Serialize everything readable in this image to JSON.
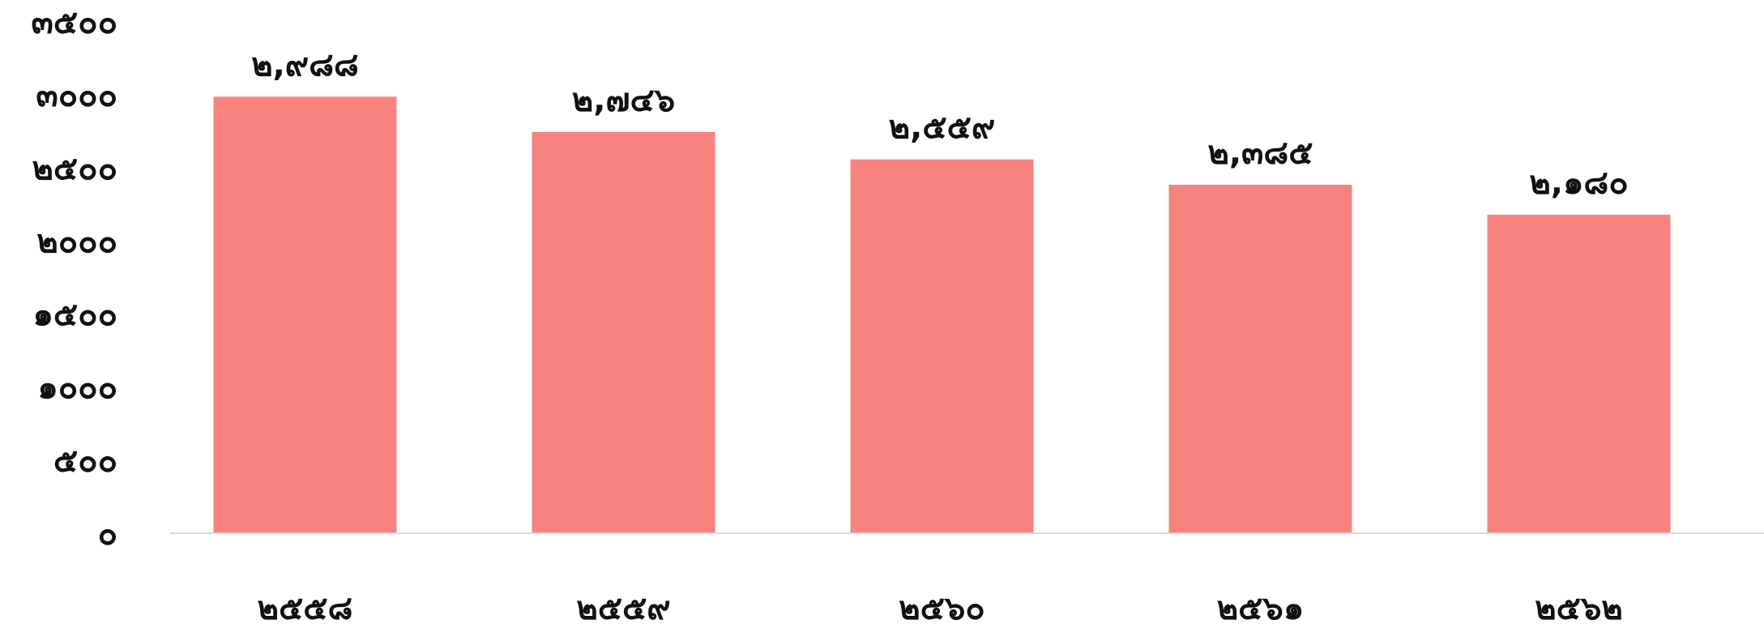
{
  "chart_data": {
    "type": "bar",
    "title": "",
    "xlabel": "",
    "ylabel": "",
    "categories": [
      "๒๕๕๘",
      "๒๕๕๙",
      "๒๕๖๐",
      "๒๕๖๑",
      "๒๕๖๒"
    ],
    "values": [
      2988,
      2746,
      2559,
      2385,
      2180
    ],
    "data_labels": [
      "๒,๙๘๘",
      "๒,๗๔๖",
      "๒,๕๕๙",
      "๒,๓๘๕",
      "๒,๑๘๐"
    ],
    "ylim": [
      0,
      3500
    ],
    "yticks": [
      0,
      500,
      1000,
      1500,
      2000,
      2500,
      3000,
      3500
    ],
    "ytick_labels": [
      "๐",
      "๕๐๐",
      "๑๐๐๐",
      "๑๕๐๐",
      "๒๐๐๐",
      "๒๕๐๐",
      "๓๐๐๐",
      "๓๕๐๐"
    ],
    "grid": false,
    "legend": "none",
    "colors": {
      "bar": "#f8837e",
      "baseline": "#d9d9d9",
      "text": "#111111"
    }
  }
}
